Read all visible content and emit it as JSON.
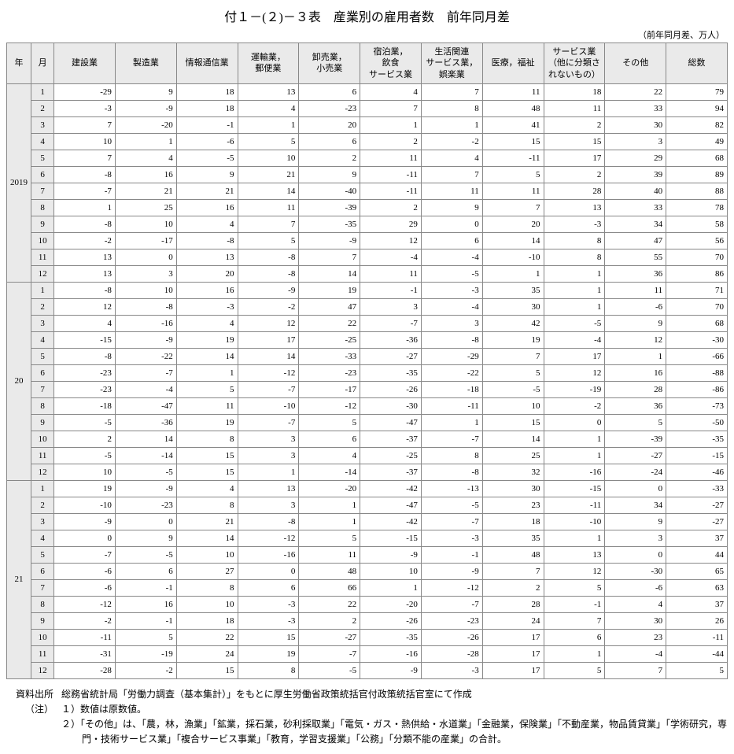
{
  "title": "付１－(２)－３表　産業別の雇用者数　前年同月差",
  "unit_note": "（前年同月差、万人）",
  "columns": [
    "年",
    "月",
    "建設業",
    "製造業",
    "情報通信業",
    "運輸業，\n郵便業",
    "卸売業，\n小売業",
    "宿泊業，\n飲食\nサービス業",
    "生活関連\nサービス業，\n娯楽業",
    "医療，福祉",
    "サービス業\n（他に分類さ\nれないもの）",
    "その他",
    "総数"
  ],
  "years": [
    {
      "year": "2019",
      "rows": [
        [
          "1",
          "-29",
          "9",
          "18",
          "13",
          "6",
          "4",
          "7",
          "11",
          "18",
          "22",
          "79"
        ],
        [
          "2",
          "-3",
          "-9",
          "18",
          "4",
          "-23",
          "7",
          "8",
          "48",
          "11",
          "33",
          "94"
        ],
        [
          "3",
          "7",
          "-20",
          "-1",
          "1",
          "20",
          "1",
          "1",
          "41",
          "2",
          "30",
          "82"
        ],
        [
          "4",
          "10",
          "1",
          "-6",
          "5",
          "6",
          "2",
          "-2",
          "15",
          "15",
          "3",
          "49"
        ],
        [
          "5",
          "7",
          "4",
          "-5",
          "10",
          "2",
          "11",
          "4",
          "-11",
          "17",
          "29",
          "68"
        ],
        [
          "6",
          "-8",
          "16",
          "9",
          "21",
          "9",
          "-11",
          "7",
          "5",
          "2",
          "39",
          "89"
        ],
        [
          "7",
          "-7",
          "21",
          "21",
          "14",
          "-40",
          "-11",
          "11",
          "11",
          "28",
          "40",
          "88"
        ],
        [
          "8",
          "1",
          "25",
          "16",
          "11",
          "-39",
          "2",
          "9",
          "7",
          "13",
          "33",
          "78"
        ],
        [
          "9",
          "-8",
          "10",
          "4",
          "7",
          "-35",
          "29",
          "0",
          "20",
          "-3",
          "34",
          "58"
        ],
        [
          "10",
          "-2",
          "-17",
          "-8",
          "5",
          "-9",
          "12",
          "6",
          "14",
          "8",
          "47",
          "56"
        ],
        [
          "11",
          "13",
          "0",
          "13",
          "-8",
          "7",
          "-4",
          "-4",
          "-10",
          "8",
          "55",
          "70"
        ],
        [
          "12",
          "13",
          "3",
          "20",
          "-8",
          "14",
          "11",
          "-5",
          "1",
          "1",
          "36",
          "86"
        ]
      ]
    },
    {
      "year": "20",
      "rows": [
        [
          "1",
          "-8",
          "10",
          "16",
          "-9",
          "19",
          "-1",
          "-3",
          "35",
          "1",
          "11",
          "71"
        ],
        [
          "2",
          "12",
          "-8",
          "-3",
          "-2",
          "47",
          "3",
          "-4",
          "30",
          "1",
          "-6",
          "70"
        ],
        [
          "3",
          "4",
          "-16",
          "4",
          "12",
          "22",
          "-7",
          "3",
          "42",
          "-5",
          "9",
          "68"
        ],
        [
          "4",
          "-15",
          "-9",
          "19",
          "17",
          "-25",
          "-36",
          "-8",
          "19",
          "-4",
          "12",
          "-30"
        ],
        [
          "5",
          "-8",
          "-22",
          "14",
          "14",
          "-33",
          "-27",
          "-29",
          "7",
          "17",
          "1",
          "-66"
        ],
        [
          "6",
          "-23",
          "-7",
          "1",
          "-12",
          "-23",
          "-35",
          "-22",
          "5",
          "12",
          "16",
          "-88"
        ],
        [
          "7",
          "-23",
          "-4",
          "5",
          "-7",
          "-17",
          "-26",
          "-18",
          "-5",
          "-19",
          "28",
          "-86"
        ],
        [
          "8",
          "-18",
          "-47",
          "11",
          "-10",
          "-12",
          "-30",
          "-11",
          "10",
          "-2",
          "36",
          "-73"
        ],
        [
          "9",
          "-5",
          "-36",
          "19",
          "-7",
          "5",
          "-47",
          "1",
          "15",
          "0",
          "5",
          "-50"
        ],
        [
          "10",
          "2",
          "14",
          "8",
          "3",
          "6",
          "-37",
          "-7",
          "14",
          "1",
          "-39",
          "-35"
        ],
        [
          "11",
          "-5",
          "-14",
          "15",
          "3",
          "4",
          "-25",
          "8",
          "25",
          "1",
          "-27",
          "-15"
        ],
        [
          "12",
          "10",
          "-5",
          "15",
          "1",
          "-14",
          "-37",
          "-8",
          "32",
          "-16",
          "-24",
          "-46"
        ]
      ]
    },
    {
      "year": "21",
      "rows": [
        [
          "1",
          "19",
          "-9",
          "4",
          "13",
          "-20",
          "-42",
          "-13",
          "30",
          "-15",
          "0",
          "-33"
        ],
        [
          "2",
          "-10",
          "-23",
          "8",
          "3",
          "1",
          "-47",
          "-5",
          "23",
          "-11",
          "34",
          "-27"
        ],
        [
          "3",
          "-9",
          "0",
          "21",
          "-8",
          "1",
          "-42",
          "-7",
          "18",
          "-10",
          "9",
          "-27"
        ],
        [
          "4",
          "0",
          "9",
          "14",
          "-12",
          "5",
          "-15",
          "-3",
          "35",
          "1",
          "3",
          "37"
        ],
        [
          "5",
          "-7",
          "-5",
          "10",
          "-16",
          "11",
          "-9",
          "-1",
          "48",
          "13",
          "0",
          "44"
        ],
        [
          "6",
          "-6",
          "6",
          "27",
          "0",
          "48",
          "10",
          "-9",
          "7",
          "12",
          "-30",
          "65"
        ],
        [
          "7",
          "-6",
          "-1",
          "8",
          "6",
          "66",
          "1",
          "-12",
          "2",
          "5",
          "-6",
          "63"
        ],
        [
          "8",
          "-12",
          "16",
          "10",
          "-3",
          "22",
          "-20",
          "-7",
          "28",
          "-1",
          "4",
          "37"
        ],
        [
          "9",
          "-2",
          "-1",
          "18",
          "-3",
          "2",
          "-26",
          "-23",
          "24",
          "7",
          "30",
          "26"
        ],
        [
          "10",
          "-11",
          "5",
          "22",
          "15",
          "-27",
          "-35",
          "-26",
          "17",
          "6",
          "23",
          "-11"
        ],
        [
          "11",
          "-31",
          "-19",
          "24",
          "19",
          "-7",
          "-16",
          "-28",
          "17",
          "1",
          "-4",
          "-44"
        ],
        [
          "12",
          "-28",
          "-2",
          "15",
          "8",
          "-5",
          "-9",
          "-3",
          "17",
          "5",
          "7",
          "5"
        ]
      ]
    }
  ],
  "source_label": "資料出所",
  "source_text": "総務省統計局「労働力調査（基本集計）」をもとに厚生労働省政策統括官付政策統括官室にて作成",
  "note_label": "（注）",
  "note1": "１）数値は原数値。",
  "note2": "２）「その他」は、「農，林，漁業」「鉱業，採石業，砂利採取業」「電気・ガス・熱供給・水道業」「金融業，保険業」「不動産業，物品賃貸業」「学術研究，専門・技術サービス業」「複合サービス事業」「教育，学習支援業」「公務」「分類不能の産業」の合計。"
}
